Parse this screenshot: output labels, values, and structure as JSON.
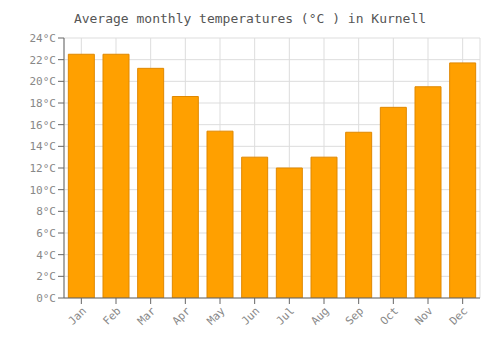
{
  "chart_data": {
    "type": "bar",
    "title": "Average monthly temperatures (°C ) in Kurnell",
    "categories": [
      "Jan",
      "Feb",
      "Mar",
      "Apr",
      "May",
      "Jun",
      "Jul",
      "Aug",
      "Sep",
      "Oct",
      "Nov",
      "Dec"
    ],
    "values": [
      22.5,
      22.5,
      21.2,
      18.6,
      15.4,
      13.0,
      12.0,
      13.0,
      15.3,
      17.6,
      19.5,
      21.7
    ],
    "color": "#FFA000",
    "ylim": [
      0,
      24
    ],
    "yticks": [
      {
        "value": 0,
        "label": "0°C"
      },
      {
        "value": 2,
        "label": "2°C"
      },
      {
        "value": 4,
        "label": "4°C"
      },
      {
        "value": 6,
        "label": "6°C"
      },
      {
        "value": 8,
        "label": "8°C"
      },
      {
        "value": 10,
        "label": "10°C"
      },
      {
        "value": 12,
        "label": "12°C"
      },
      {
        "value": 14,
        "label": "14°C"
      },
      {
        "value": 16,
        "label": "16°C"
      },
      {
        "value": 18,
        "label": "18°C"
      },
      {
        "value": 20,
        "label": "20°C"
      },
      {
        "value": 22,
        "label": "22°C"
      },
      {
        "value": 24,
        "label": "24°C"
      }
    ],
    "grid": true
  }
}
